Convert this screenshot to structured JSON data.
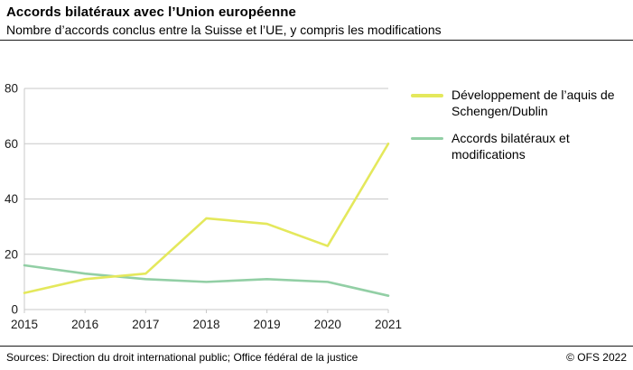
{
  "header": {
    "title": "Accords bilatéraux avec l’Union européenne",
    "subtitle": "Nombre d’accords conclus entre la Suisse et l’UE, y compris les modifications"
  },
  "footer": {
    "sources": "Sources: Direction du droit international public; Office fédéral de la justice",
    "copyright": "© OFS 2022"
  },
  "chart_data": {
    "type": "line",
    "x": [
      "2015",
      "2016",
      "2017",
      "2018",
      "2019",
      "2020",
      "2021"
    ],
    "series": [
      {
        "name": "Développement de l’aquis de Schengen/Dublin",
        "color": "#e4e85c",
        "values": [
          6,
          11,
          13,
          33,
          31,
          23,
          60
        ]
      },
      {
        "name": "Accords bilatéraux et modifications",
        "color": "#92cfa5",
        "values": [
          16,
          13,
          11,
          10,
          11,
          10,
          5
        ]
      }
    ],
    "ylim": [
      0,
      80
    ],
    "yticks": [
      0,
      20,
      40,
      60,
      80
    ],
    "grid": true,
    "grid_color": "#c8c8c8",
    "legend_position": "right"
  }
}
